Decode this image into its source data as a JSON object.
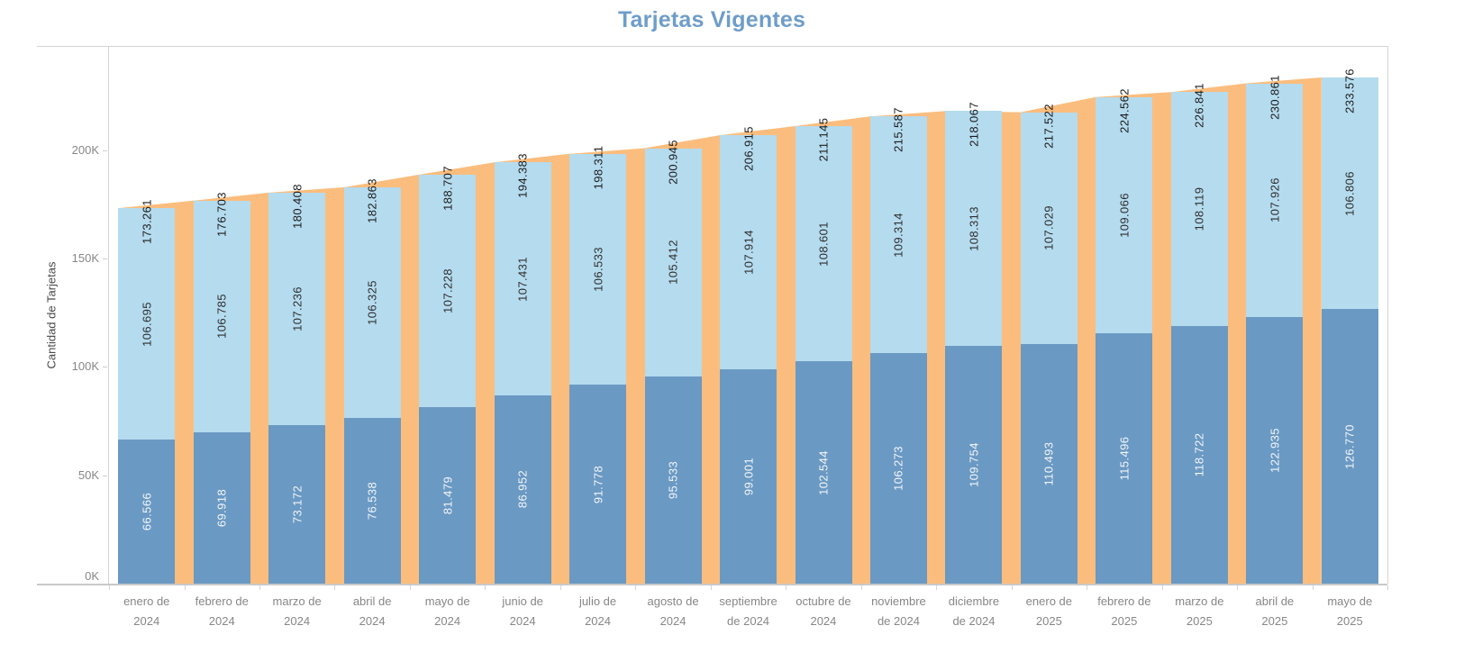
{
  "title": "Tarjetas Vigentes",
  "colors": {
    "title_text": "#6e9dc9",
    "bar_bottom": "#6a99c3",
    "bar_top": "#b5dbee",
    "area_total": "#fbbd7d",
    "label_on_dark": "#f4f6f9",
    "label_on_light": "#2f2f2f",
    "label_total": "#1c1c1c",
    "axis_text": "#878787",
    "axis_title_text": "#4a4a4a"
  },
  "y_axis": {
    "title": "Cantidad de Tarjetas",
    "tick_values": [
      0,
      50000,
      100000,
      150000,
      200000
    ],
    "tick_labels": [
      "0K",
      "50K",
      "100K",
      "150K",
      "200K"
    ]
  },
  "chart_data": {
    "type": "bar",
    "stacked": true,
    "title": "Tarjetas Vigentes",
    "ylabel": "Cantidad de Tarjetas",
    "xlabel": "",
    "ylim": [
      0,
      247700
    ],
    "grid": false,
    "legend": "none",
    "number_format": "thousands-dot",
    "categories": [
      "enero de 2024",
      "febrero de 2024",
      "marzo de 2024",
      "abril de 2024",
      "mayo de 2024",
      "junio de 2024",
      "julio de 2024",
      "agosto de 2024",
      "septiembre de 2024",
      "octubre de 2024",
      "noviembre de 2024",
      "diciembre de 2024",
      "enero de 2025",
      "febrero de 2025",
      "marzo de 2025",
      "abril de 2025",
      "mayo de 2025"
    ],
    "category_label_lines": [
      [
        "enero de",
        "2024"
      ],
      [
        "febrero de",
        "2024"
      ],
      [
        "marzo de",
        "2024"
      ],
      [
        "abril de",
        "2024"
      ],
      [
        "mayo de",
        "2024"
      ],
      [
        "junio de",
        "2024"
      ],
      [
        "julio de",
        "2024"
      ],
      [
        "agosto de",
        "2024"
      ],
      [
        "septiembre",
        "de 2024"
      ],
      [
        "octubre de",
        "2024"
      ],
      [
        "noviembre",
        "de 2024"
      ],
      [
        "diciembre",
        "de 2024"
      ],
      [
        "enero de",
        "2025"
      ],
      [
        "febrero de",
        "2025"
      ],
      [
        "marzo de",
        "2025"
      ],
      [
        "abril de",
        "2025"
      ],
      [
        "mayo de",
        "2025"
      ]
    ],
    "series": [
      {
        "name": "bottom",
        "color": "#6a99c3",
        "values": [
          66566,
          69918,
          73172,
          76538,
          81479,
          86952,
          91778,
          95533,
          99001,
          102544,
          106273,
          109754,
          110493,
          115496,
          118722,
          122935,
          126770
        ]
      },
      {
        "name": "top",
        "color": "#b5dbee",
        "values": [
          106695,
          106785,
          107236,
          106325,
          107228,
          107431,
          106533,
          105412,
          107914,
          108601,
          109314,
          108313,
          107029,
          109066,
          108119,
          107926,
          106806
        ]
      },
      {
        "name": "total-area",
        "type": "area",
        "color": "#fbbd7d",
        "values": [
          173261,
          176703,
          180408,
          182863,
          188707,
          194383,
          198311,
          200945,
          206915,
          211145,
          215587,
          218067,
          217522,
          224562,
          226841,
          230861,
          233576
        ]
      }
    ]
  }
}
